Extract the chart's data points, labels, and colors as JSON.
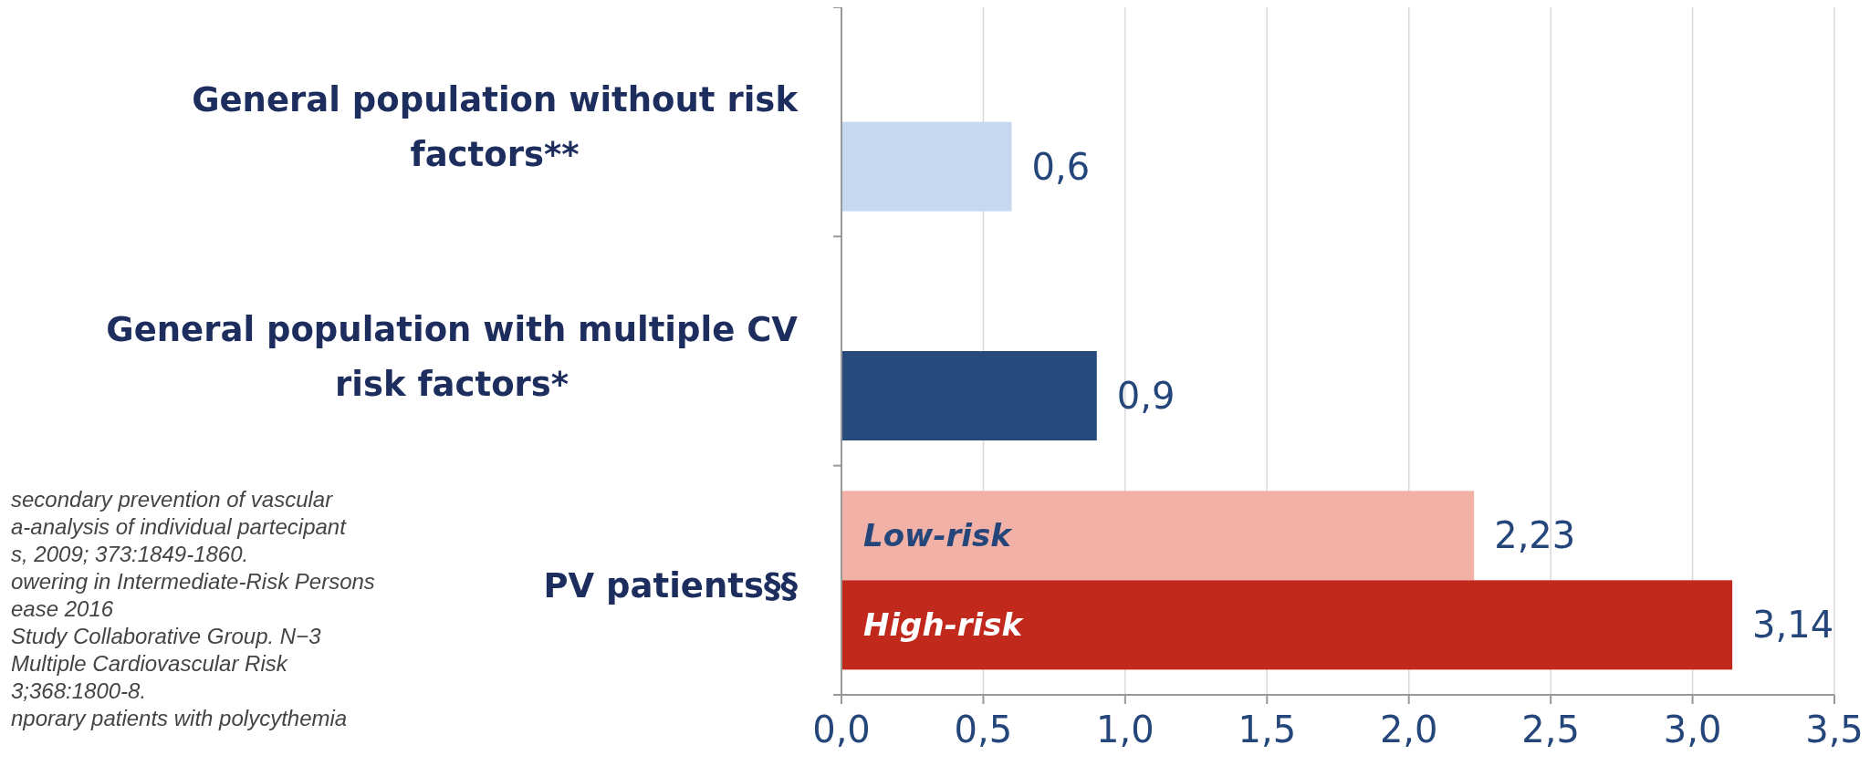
{
  "chart_data": {
    "type": "bar",
    "orientation": "horizontal",
    "categories": [
      "General population without risk factors**",
      "General population with multiple CV risk factors*",
      "PV patients§§"
    ],
    "series": [
      {
        "name": "Low-risk",
        "color": "#f2b1a7",
        "values": [
          null,
          null,
          2.23
        ],
        "value_labels": [
          null,
          null,
          "2,23"
        ]
      },
      {
        "colors": [
          "#c6d8ef",
          "#264a7c",
          "#c0291c"
        ],
        "values": [
          0.6,
          0.9,
          3.14
        ],
        "value_labels": [
          "0,6",
          "0,9",
          "3,14"
        ]
      }
    ],
    "xlim": [
      0,
      3.5
    ],
    "xticks": [
      {
        "value": 0,
        "label": "0,0"
      },
      {
        "value": 0.5,
        "label": "0,5"
      },
      {
        "value": 1,
        "label": "1,0"
      },
      {
        "value": 1.5,
        "label": "1,5"
      },
      {
        "value": 2,
        "label": "2,0"
      },
      {
        "value": 2.5,
        "label": "2,5"
      },
      {
        "value": 3,
        "label": "3,0"
      },
      {
        "value": 3.5,
        "label": "3,5"
      }
    ],
    "grid": "x",
    "annotations": [
      {
        "text": "High-risk",
        "x": 0,
        "y": "PV patients§§"
      },
      "secondary prevention of vascular",
      "a-analysis of individual partecipant",
      "s, 2009; 373:1849-1860.",
      "owering in Intermediate-Risk Persons",
      "ease 2016",
      "Study Collaborative Group. N−3",
      "Multiple Cardiovascular Risk",
      "3;368:1800-8.",
      "nporary patients with polycythemia"
    ]
  }
}
